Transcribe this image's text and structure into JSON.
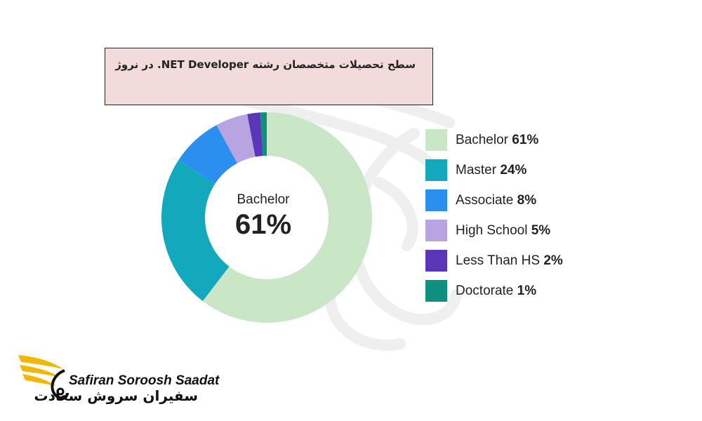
{
  "header": {
    "title": "سطح تحصیلات متخصصان رشته NET Developer. در نروژ"
  },
  "chart_data": {
    "type": "pie",
    "variant": "donut",
    "categories": [
      "Bachelor",
      "Master",
      "Associate",
      "High School",
      "Less Than HS",
      "Doctorate"
    ],
    "values": [
      61,
      24,
      8,
      5,
      2,
      1
    ],
    "value_labels": [
      "61%",
      "24%",
      "8%",
      "5%",
      "2%",
      "1%"
    ],
    "colors": [
      "#c9e7c7",
      "#12a9bd",
      "#2b8ff0",
      "#b9a4e2",
      "#5a36b8",
      "#0f8f7e"
    ],
    "center_label": "Bachelor",
    "center_value": "61%",
    "legend_position": "right"
  },
  "brand": {
    "name_en": "Safiran Soroosh Saadat",
    "name_fa": "سفیران سروش سعادت",
    "logo_icon": "wing-logo-icon",
    "logo_color": "#f2b705"
  }
}
